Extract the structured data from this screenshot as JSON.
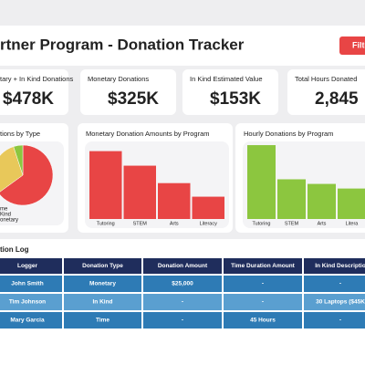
{
  "header": {
    "title": "rtner Program - Donation Tracker",
    "button": "Filte"
  },
  "kpis": [
    {
      "label": "tary + In Kind Donations",
      "value": "$478K"
    },
    {
      "label": "Monetary Donations",
      "value": "$325K"
    },
    {
      "label": "In Kind Estimated Value",
      "value": "$153K"
    },
    {
      "label": "Total Hours Donated",
      "value": "2,845"
    }
  ],
  "chart_data": [
    {
      "type": "pie",
      "title": "tions by Type",
      "categories": [
        "onetary",
        "Kind",
        "me"
      ],
      "values": [
        65,
        30,
        5
      ],
      "colors": [
        "#e84545",
        "#e8c85a",
        "#8cc63f"
      ]
    },
    {
      "type": "bar",
      "title": "Monetary Donation Amounts by Program",
      "categories": [
        "Tutoring",
        "STEM",
        "Arts",
        "Literacy"
      ],
      "values": [
        70,
        55,
        37,
        23
      ],
      "color": "#e84545",
      "ylim": [
        0,
        80
      ]
    },
    {
      "type": "bar",
      "title": "Hourly Donations by Program",
      "categories": [
        "Tutoring",
        "STEM",
        "Arts",
        "Litera"
      ],
      "values": [
        80,
        43,
        38,
        33
      ],
      "color": "#8cc63f",
      "ylim": [
        0,
        84
      ]
    }
  ],
  "table": {
    "title": "tion Log",
    "header": [
      "Logger",
      "Donation Type",
      "Donation Amount",
      "Time Duration Amount",
      "In Kind Descriptio"
    ],
    "rows": [
      [
        "John Smith",
        "Monetary",
        "$25,000",
        "-",
        "-"
      ],
      [
        "Tim Johnson",
        "In Kind",
        "-",
        "-",
        "30 Laptops ($45K"
      ],
      [
        "Mary Garcia",
        "Time",
        "-",
        "45 Hours",
        "-"
      ]
    ]
  }
}
